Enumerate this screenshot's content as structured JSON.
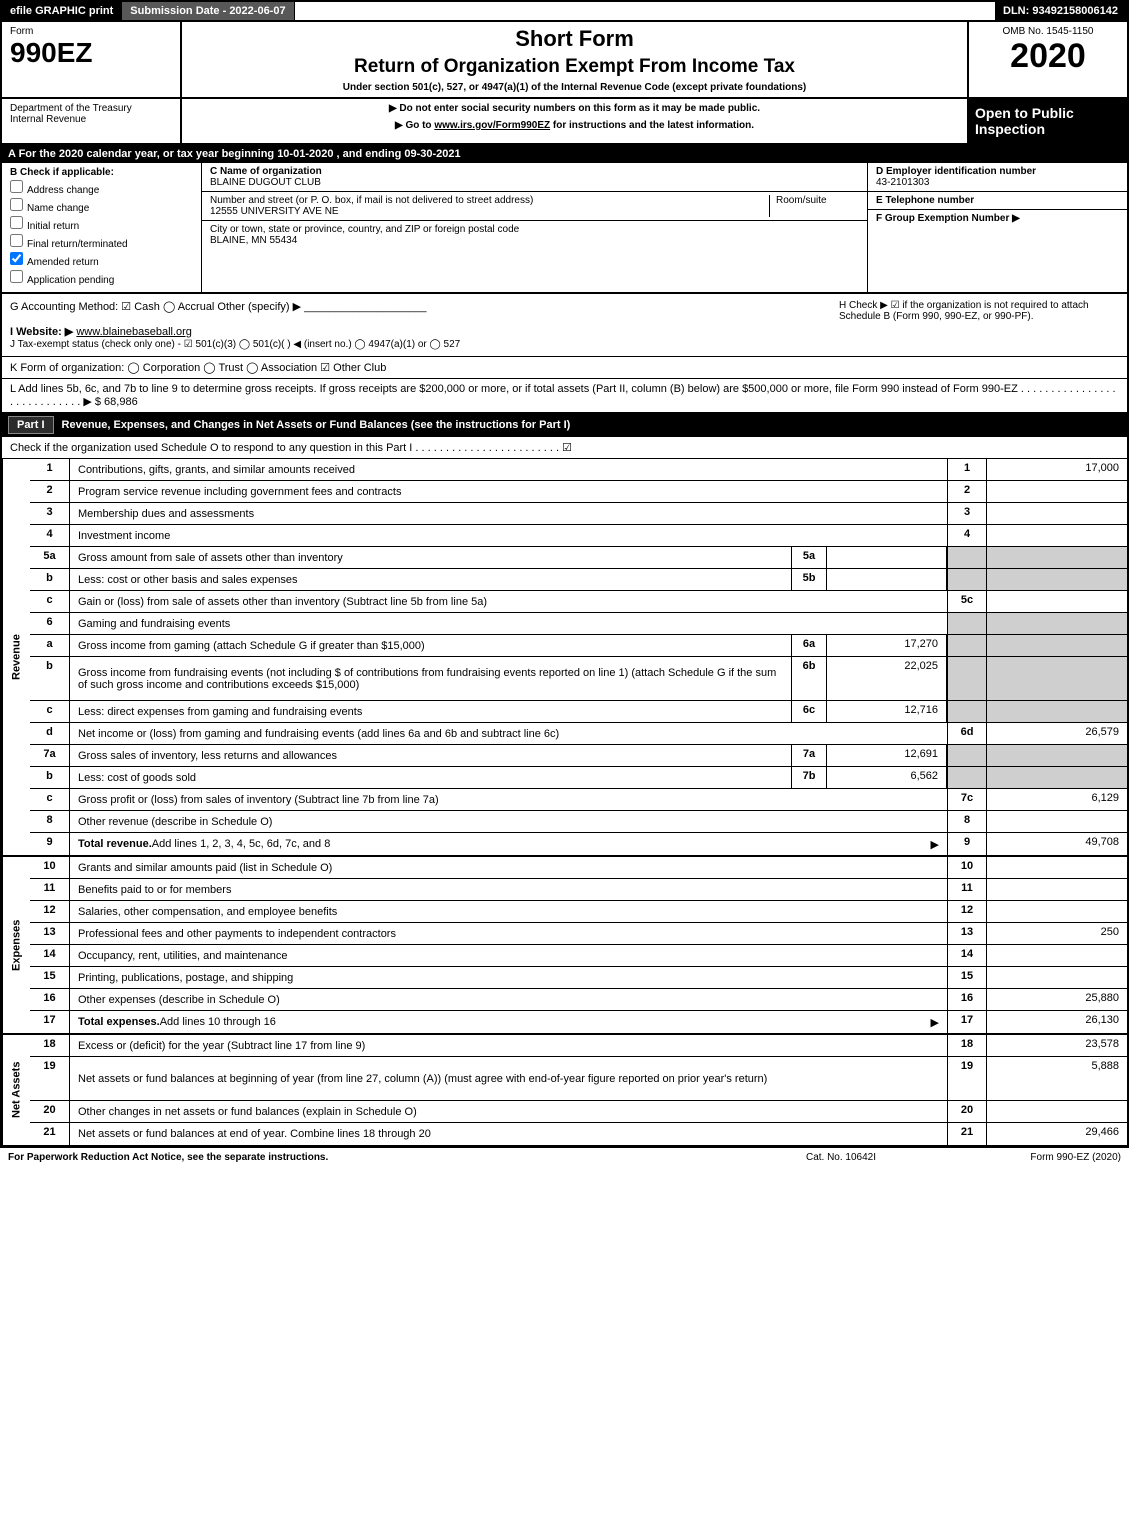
{
  "header_bar": {
    "efile": "efile GRAPHIC print",
    "submission": "Submission Date - 2022-06-07",
    "dln": "DLN: 93492158006142"
  },
  "form_head": {
    "form_word": "Form",
    "form_no": "990EZ",
    "dept1": "Department of the Treasury",
    "dept2": "Internal Revenue",
    "title": "Short Form",
    "subtitle": "Return of Organization Exempt From Income Tax",
    "under": "Under section 501(c), 527, or 4947(a)(1) of the Internal Revenue Code (except private foundations)",
    "warn1": "▶ Do not enter social security numbers on this form as it may be made public.",
    "warn2": "▶ Go to www.irs.gov/Form990EZ for instructions and the latest information.",
    "omb": "OMB No. 1545-1150",
    "year": "2020",
    "open": "Open to Public Inspection"
  },
  "tax_year": "A For the 2020 calendar year, or tax year beginning 10-01-2020 , and ending 09-30-2021",
  "box_b": {
    "head": "B  Check if applicable:",
    "opts": [
      "Address change",
      "Name change",
      "Initial return",
      "Final return/terminated",
      "Amended return",
      "Application pending"
    ],
    "checked_idx": 4
  },
  "box_c": {
    "label": "C Name of organization",
    "name": "BLAINE DUGOUT CLUB",
    "addr_label": "Number and street (or P. O. box, if mail is not delivered to street address)",
    "addr": "12555 UNIVERSITY AVE NE",
    "room_label": "Room/suite",
    "city_label": "City or town, state or province, country, and ZIP or foreign postal code",
    "city": "BLAINE, MN  55434"
  },
  "box_d": {
    "label": "D Employer identification number",
    "value": "43-2101303"
  },
  "box_e": {
    "label": "E Telephone number",
    "value": ""
  },
  "box_f": {
    "label": "F Group Exemption Number  ▶",
    "value": ""
  },
  "row_g": {
    "label": "G Accounting Method:   ☑ Cash   ◯ Accrual   Other (specify) ▶",
    "h": "H  Check ▶  ☑  if the organization is not required to attach Schedule B (Form 990, 990-EZ, or 990-PF)."
  },
  "row_i": {
    "label": "I Website: ▶",
    "value": "www.blainebaseball.org"
  },
  "row_j": "J Tax-exempt status (check only one) -  ☑ 501(c)(3)  ◯ 501(c)(  ) ◀ (insert no.)  ◯ 4947(a)(1) or  ◯ 527",
  "row_k": "K Form of organization:   ◯ Corporation   ◯ Trust   ◯ Association   ☑ Other Club",
  "row_l": "L Add lines 5b, 6c, and 7b to line 9 to determine gross receipts. If gross receipts are $200,000 or more, or if total assets (Part II, column (B) below) are $500,000 or more, file Form 990 instead of Form 990-EZ  .  .  .  .  .  .  .  .  .  .  .  .  .  .  .  .  .  .  .  .  .  .  .  .  .  .  .  .  ▶ $ 68,986",
  "part1": {
    "tag": "Part I",
    "title": "Revenue, Expenses, and Changes in Net Assets or Fund Balances (see the instructions for Part I)",
    "sub": "Check if the organization used Schedule O to respond to any question in this Part I .  .  .  .  .  .  .  .  .  .  .  .  .  .  .  .  .  .  .  .  .  .  .  .   ☑"
  },
  "sections": {
    "revenue_label": "Revenue",
    "expenses_label": "Expenses",
    "netassets_label": "Net Assets"
  },
  "lines": [
    {
      "n": "1",
      "d": "Contributions, gifts, grants, and similar amounts received",
      "r": "1",
      "v": "17,000"
    },
    {
      "n": "2",
      "d": "Program service revenue including government fees and contracts",
      "r": "2",
      "v": ""
    },
    {
      "n": "3",
      "d": "Membership dues and assessments",
      "r": "3",
      "v": ""
    },
    {
      "n": "4",
      "d": "Investment income",
      "r": "4",
      "v": ""
    },
    {
      "n": "5a",
      "d": "Gross amount from sale of assets other than inventory",
      "sn": "5a",
      "sv": "",
      "shade": true
    },
    {
      "n": "b",
      "d": "Less: cost or other basis and sales expenses",
      "sn": "5b",
      "sv": "",
      "shade": true
    },
    {
      "n": "c",
      "d": "Gain or (loss) from sale of assets other than inventory (Subtract line 5b from line 5a)",
      "r": "5c",
      "v": ""
    },
    {
      "n": "6",
      "d": "Gaming and fundraising events",
      "shade": true,
      "noval": true
    },
    {
      "n": "a",
      "d": "Gross income from gaming (attach Schedule G if greater than $15,000)",
      "sn": "6a",
      "sv": "17,270",
      "shade": true
    },
    {
      "n": "b",
      "d": "Gross income from fundraising events (not including $                of contributions from fundraising events reported on line 1) (attach Schedule G if the sum of such gross income and contributions exceeds $15,000)",
      "sn": "6b",
      "sv": "22,025",
      "shade": true,
      "tall": true
    },
    {
      "n": "c",
      "d": "Less: direct expenses from gaming and fundraising events",
      "sn": "6c",
      "sv": "12,716",
      "shade": true
    },
    {
      "n": "d",
      "d": "Net income or (loss) from gaming and fundraising events (add lines 6a and 6b and subtract line 6c)",
      "r": "6d",
      "v": "26,579"
    },
    {
      "n": "7a",
      "d": "Gross sales of inventory, less returns and allowances",
      "sn": "7a",
      "sv": "12,691",
      "shade": true
    },
    {
      "n": "b",
      "d": "Less: cost of goods sold",
      "sn": "7b",
      "sv": "6,562",
      "shade": true
    },
    {
      "n": "c",
      "d": "Gross profit or (loss) from sales of inventory (Subtract line 7b from line 7a)",
      "r": "7c",
      "v": "6,129"
    },
    {
      "n": "8",
      "d": "Other revenue (describe in Schedule O)",
      "r": "8",
      "v": ""
    },
    {
      "n": "9",
      "d": "Total revenue. Add lines 1, 2, 3, 4, 5c, 6d, 7c, and 8",
      "r": "9",
      "v": "49,708",
      "bold": true,
      "arrow": true
    }
  ],
  "exp_lines": [
    {
      "n": "10",
      "d": "Grants and similar amounts paid (list in Schedule O)",
      "r": "10",
      "v": ""
    },
    {
      "n": "11",
      "d": "Benefits paid to or for members",
      "r": "11",
      "v": ""
    },
    {
      "n": "12",
      "d": "Salaries, other compensation, and employee benefits",
      "r": "12",
      "v": ""
    },
    {
      "n": "13",
      "d": "Professional fees and other payments to independent contractors",
      "r": "13",
      "v": "250"
    },
    {
      "n": "14",
      "d": "Occupancy, rent, utilities, and maintenance",
      "r": "14",
      "v": ""
    },
    {
      "n": "15",
      "d": "Printing, publications, postage, and shipping",
      "r": "15",
      "v": ""
    },
    {
      "n": "16",
      "d": "Other expenses (describe in Schedule O)",
      "r": "16",
      "v": "25,880"
    },
    {
      "n": "17",
      "d": "Total expenses. Add lines 10 through 16",
      "r": "17",
      "v": "26,130",
      "bold": true,
      "arrow": true
    }
  ],
  "na_lines": [
    {
      "n": "18",
      "d": "Excess or (deficit) for the year (Subtract line 17 from line 9)",
      "r": "18",
      "v": "23,578"
    },
    {
      "n": "19",
      "d": "Net assets or fund balances at beginning of year (from line 27, column (A)) (must agree with end-of-year figure reported on prior year's return)",
      "r": "19",
      "v": "5,888",
      "tall": true
    },
    {
      "n": "20",
      "d": "Other changes in net assets or fund balances (explain in Schedule O)",
      "r": "20",
      "v": ""
    },
    {
      "n": "21",
      "d": "Net assets or fund balances at end of year. Combine lines 18 through 20",
      "r": "21",
      "v": "29,466"
    }
  ],
  "footer": {
    "left": "For Paperwork Reduction Act Notice, see the separate instructions.",
    "center": "Cat. No. 10642I",
    "right": "Form 990-EZ (2020)"
  }
}
